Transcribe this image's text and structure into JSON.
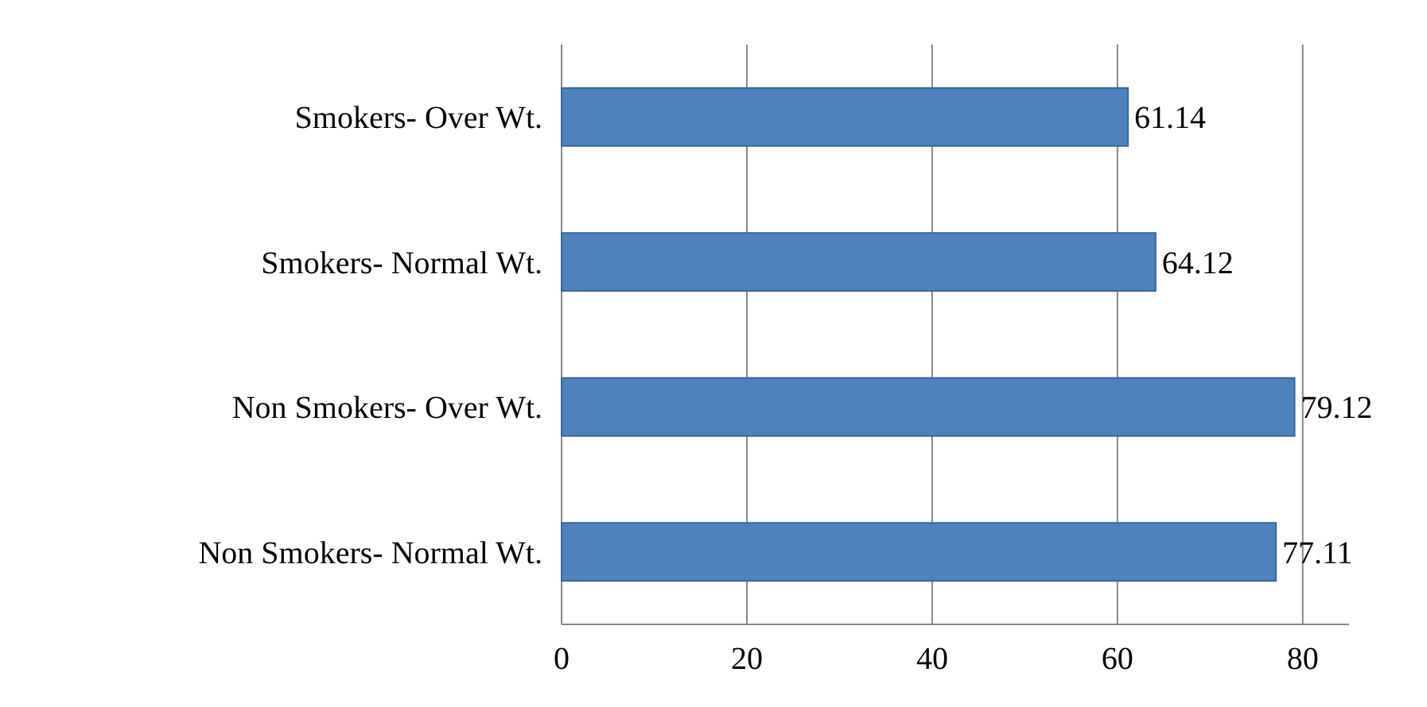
{
  "chart_data": {
    "type": "bar",
    "orientation": "horizontal",
    "categories": [
      "Smokers- Over Wt.",
      "Smokers- Normal Wt.",
      "Non Smokers- Over Wt.",
      "Non Smokers- Normal Wt."
    ],
    "values": [
      61.14,
      64.12,
      79.12,
      77.11
    ],
    "color": "#4f81bd",
    "data_labels": true,
    "xlim": [
      0,
      85
    ],
    "xticks": [
      0,
      20,
      40,
      60,
      80
    ],
    "grid": "x"
  }
}
